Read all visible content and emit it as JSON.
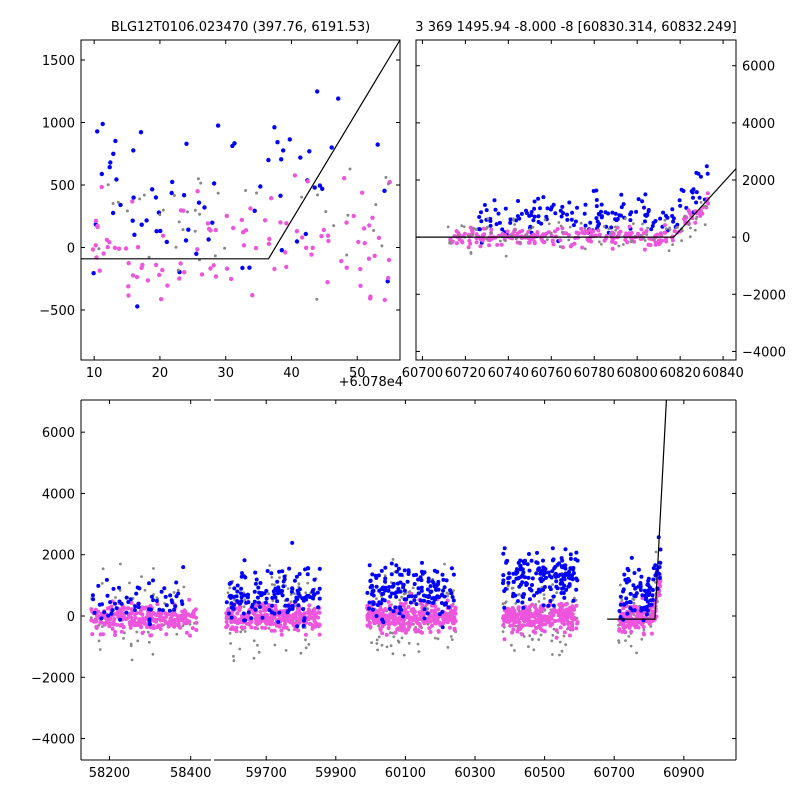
{
  "chart_data": [
    {
      "id": "zoom",
      "type": "scatter",
      "title": "BLG12T0106.023470 (397.76, 6191.53)",
      "xlim": [
        8,
        56.5
      ],
      "ylim": [
        -900,
        1660
      ],
      "xticks": [
        10,
        20,
        30,
        40,
        50
      ],
      "xtick_labels": [
        "10",
        "20",
        "30",
        "40",
        "50"
      ],
      "yticks": [
        -500,
        0,
        500,
        1000,
        1500
      ],
      "ytick_labels": [
        "−500",
        "0",
        "500",
        "1000",
        "1500"
      ],
      "offset_text": "+6.078e4",
      "model_line": [
        [
          8,
          -90
        ],
        [
          36.5,
          -90
        ],
        [
          56.5,
          1660
        ]
      ],
      "series": [
        {
          "name": "blue",
          "color": "#0000ff",
          "n": 70,
          "seed": 11,
          "x_range": [
            9,
            55
          ],
          "y_center": 500,
          "y_spread": 700
        },
        {
          "name": "magenta",
          "color": "#ee55dd",
          "n": 100,
          "seed": 23,
          "x_range": [
            8.5,
            55
          ],
          "y_center": 50,
          "y_spread": 380
        },
        {
          "name": "grey",
          "color": "#888888",
          "n": 40,
          "seed": 37,
          "x_range": [
            9,
            55
          ],
          "y_center": 150,
          "y_spread": 500
        }
      ]
    },
    {
      "id": "season",
      "type": "scatter",
      "title": "3 369 1495.94 -8.000 -8 [60830.314, 60832.249]",
      "xlim": [
        60697,
        60846
      ],
      "ylim": [
        -4300,
        6900
      ],
      "xticks": [
        60700,
        60720,
        60740,
        60760,
        60780,
        60800,
        60820,
        60840
      ],
      "xtick_labels": [
        "60700",
        "60720",
        "60740",
        "60760",
        "60780",
        "60800",
        "60820",
        "60840"
      ],
      "yticks": [
        -4000,
        -2000,
        0,
        2000,
        4000,
        6000
      ],
      "ytick_labels": [
        "−4000",
        "−2000",
        "0",
        "2000",
        "4000",
        "6000"
      ],
      "model_line": [
        [
          60697,
          0
        ],
        [
          60817,
          0
        ],
        [
          60846,
          2400
        ]
      ],
      "series": [
        {
          "name": "blue",
          "color": "#0000ff",
          "n": 160,
          "seed": 41,
          "x_range": [
            60725,
            60833
          ],
          "y_center": 700,
          "y_spread": 650
        },
        {
          "name": "magenta",
          "color": "#ee55dd",
          "n": 260,
          "seed": 53,
          "x_range": [
            60712,
            60833
          ],
          "y_center": 0,
          "y_spread": 280
        },
        {
          "name": "grey",
          "color": "#888888",
          "n": 90,
          "seed": 67,
          "x_range": [
            60712,
            60833
          ],
          "y_center": 100,
          "y_spread": 600
        }
      ]
    },
    {
      "id": "full",
      "type": "scatter",
      "title": "",
      "ylim": [
        -4700,
        7050
      ],
      "yticks": [
        -4000,
        -2000,
        0,
        2000,
        4000,
        6000
      ],
      "ytick_labels": [
        "−4000",
        "−2000",
        "0",
        "2000",
        "4000",
        "6000"
      ],
      "panels": [
        {
          "xlim": [
            58130,
            58450
          ],
          "xticks": [
            58200,
            58400
          ],
          "xtick_labels": [
            "58200",
            "58400"
          ]
        },
        {
          "xlim": [
            59550,
            61050
          ],
          "xticks": [
            59700,
            59900,
            60100,
            60300,
            60500,
            60700,
            60900
          ],
          "xtick_labels": [
            "59700",
            "59900",
            "60100",
            "60300",
            "60500",
            "60700",
            "60900"
          ]
        }
      ],
      "model_line": [
        [
          60680,
          -100
        ],
        [
          60817,
          -100
        ],
        [
          60850,
          7050
        ]
      ],
      "seasons": [
        {
          "x_range": [
            58155,
            58415
          ],
          "seed": 101,
          "n_magenta": 260,
          "n_blue": 60,
          "n_grey": 60,
          "blue_center": 400
        },
        {
          "x_range": [
            59585,
            59855
          ],
          "seed": 202,
          "n_magenta": 300,
          "n_blue": 150,
          "n_grey": 110,
          "blue_center": 700
        },
        {
          "x_range": [
            59990,
            60245
          ],
          "seed": 303,
          "n_magenta": 300,
          "n_blue": 160,
          "n_grey": 110,
          "blue_center": 850
        },
        {
          "x_range": [
            60380,
            60595
          ],
          "seed": 404,
          "n_magenta": 280,
          "n_blue": 170,
          "n_grey": 90,
          "blue_center": 1200
        },
        {
          "x_range": [
            60712,
            60833
          ],
          "seed": 505,
          "n_magenta": 170,
          "n_blue": 90,
          "n_grey": 50,
          "blue_center": 700
        }
      ],
      "colors": {
        "blue": "#0000ff",
        "magenta": "#ee55dd",
        "grey": "#888888"
      }
    }
  ]
}
